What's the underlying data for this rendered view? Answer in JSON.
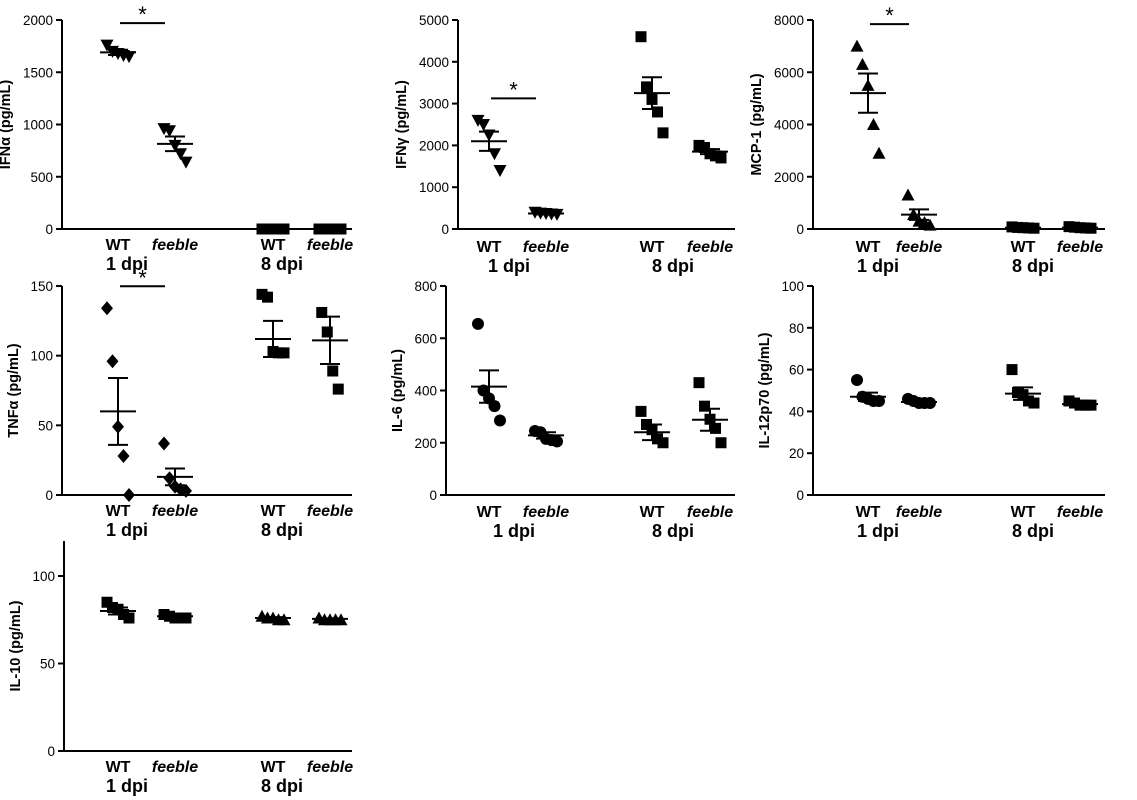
{
  "chart_data": [
    {
      "type": "scatter",
      "ylabel": "IFNα (pg/mL)",
      "ylim": [
        0,
        2000
      ],
      "yticks": [
        0,
        500,
        1000,
        1500,
        2000
      ],
      "marker": "triangle-down",
      "categories": [
        "WT",
        "feeble",
        "WT",
        "feeble"
      ],
      "groups": [
        "1 dpi",
        "8 dpi"
      ],
      "points": [
        [
          1760,
          1700,
          1680,
          1660,
          1650
        ],
        [
          960,
          940,
          800,
          720,
          640
        ],
        [
          0,
          0,
          0,
          0,
          0
        ],
        [
          0,
          0,
          0,
          0,
          0
        ]
      ],
      "mean": [
        1690,
        815,
        0,
        0
      ],
      "sem": [
        25,
        70,
        0,
        0
      ],
      "significance": [
        {
          "between": [
            0,
            1
          ],
          "label": "*"
        }
      ]
    },
    {
      "type": "scatter",
      "ylabel": "IFNγ (pg/mL)",
      "ylim": [
        0,
        5000
      ],
      "yticks": [
        0,
        1000,
        2000,
        3000,
        4000,
        5000
      ],
      "marker": "mixed",
      "categories": [
        "WT",
        "feeble",
        "WT",
        "feeble"
      ],
      "groups": [
        "1 dpi",
        "8 dpi"
      ],
      "points": [
        [
          2600,
          2500,
          2250,
          1800,
          1400
        ],
        [
          400,
          380,
          370,
          360,
          350
        ],
        [
          4600,
          3400,
          3100,
          2800,
          2300
        ],
        [
          2000,
          1950,
          1800,
          1750,
          1700
        ]
      ],
      "mean": [
        2100,
        370,
        3250,
        1850
      ],
      "sem": [
        230,
        20,
        380,
        60
      ],
      "significance": [
        {
          "between": [
            0,
            1
          ],
          "label": "*"
        }
      ]
    },
    {
      "type": "scatter",
      "ylabel": "MCP-1 (pg/mL)",
      "ylim": [
        0,
        8000
      ],
      "yticks": [
        0,
        2000,
        4000,
        6000,
        8000
      ],
      "marker": "triangle-up",
      "categories": [
        "WT",
        "feeble",
        "WT",
        "feeble"
      ],
      "groups": [
        "1 dpi",
        "8 dpi"
      ],
      "points": [
        [
          7000,
          6300,
          5500,
          4000,
          2900
        ],
        [
          1300,
          550,
          300,
          250,
          150
        ],
        [
          80,
          60,
          50,
          40,
          30
        ],
        [
          90,
          70,
          50,
          40,
          30
        ]
      ],
      "mean": [
        5200,
        550,
        55,
        55
      ],
      "sem": [
        750,
        200,
        10,
        10
      ],
      "significance": [
        {
          "between": [
            0,
            1
          ],
          "label": "*"
        }
      ]
    },
    {
      "type": "scatter",
      "ylabel": "TNFα (pg/mL)",
      "ylim": [
        0,
        150
      ],
      "yticks": [
        0,
        50,
        100,
        150
      ],
      "marker": "mixed",
      "categories": [
        "WT",
        "feeble",
        "WT",
        "feeble"
      ],
      "groups": [
        "1 dpi",
        "8 dpi"
      ],
      "points": [
        [
          134,
          96,
          49,
          28,
          0
        ],
        [
          37,
          12,
          6,
          4,
          3
        ],
        [
          144,
          142,
          103,
          102,
          102
        ],
        [
          131,
          117,
          89,
          76
        ]
      ],
      "mean": [
        60,
        13,
        112,
        111
      ],
      "sem": [
        24,
        6,
        13,
        17
      ],
      "significance": [
        {
          "between": [
            0,
            1
          ],
          "label": "*"
        }
      ]
    },
    {
      "type": "scatter",
      "ylabel": "IL-6 (pg/mL)",
      "ylim": [
        0,
        800
      ],
      "yticks": [
        0,
        200,
        400,
        600,
        800
      ],
      "marker": "mixed",
      "categories": [
        "WT",
        "feeble",
        "WT",
        "feeble"
      ],
      "groups": [
        "1 dpi",
        "8 dpi"
      ],
      "points": [
        [
          655,
          400,
          370,
          340,
          285
        ],
        [
          245,
          240,
          215,
          210,
          205
        ],
        [
          320,
          270,
          250,
          215,
          200
        ],
        [
          430,
          340,
          290,
          255,
          200
        ]
      ],
      "mean": [
        415,
        228,
        240,
        288
      ],
      "sem": [
        62,
        12,
        30,
        42
      ]
    },
    {
      "type": "scatter",
      "ylabel": "IL-12p70 (pg/mL)",
      "ylim": [
        0,
        100
      ],
      "yticks": [
        0,
        20,
        40,
        60,
        80,
        100
      ],
      "marker": "mixed",
      "categories": [
        "WT",
        "feeble",
        "WT",
        "feeble"
      ],
      "groups": [
        "1 dpi",
        "8 dpi"
      ],
      "points": [
        [
          55,
          47,
          46,
          45,
          45
        ],
        [
          46,
          45,
          44,
          44,
          44
        ],
        [
          60,
          49,
          48,
          45,
          44
        ],
        [
          45,
          44,
          43,
          43,
          43
        ]
      ],
      "mean": [
        47,
        44.5,
        48.5,
        43.5
      ],
      "sem": [
        2,
        0.5,
        3,
        0.5
      ]
    },
    {
      "type": "scatter",
      "ylabel": "IL-10 (pg/mL)",
      "ylim": [
        0,
        120
      ],
      "yticks": [
        0,
        50,
        100
      ],
      "marker": "mixed",
      "categories": [
        "WT",
        "feeble",
        "WT",
        "feeble"
      ],
      "groups": [
        "1 dpi",
        "8 dpi"
      ],
      "points": [
        [
          85,
          82,
          81,
          78,
          76
        ],
        [
          78,
          77,
          76,
          76,
          76
        ],
        [
          77,
          76,
          76,
          75,
          75
        ],
        [
          76,
          75,
          75,
          75,
          75
        ]
      ],
      "mean": [
        80,
        77,
        76,
        75.5
      ],
      "sem": [
        2,
        0.5,
        0.5,
        0.3
      ]
    }
  ]
}
